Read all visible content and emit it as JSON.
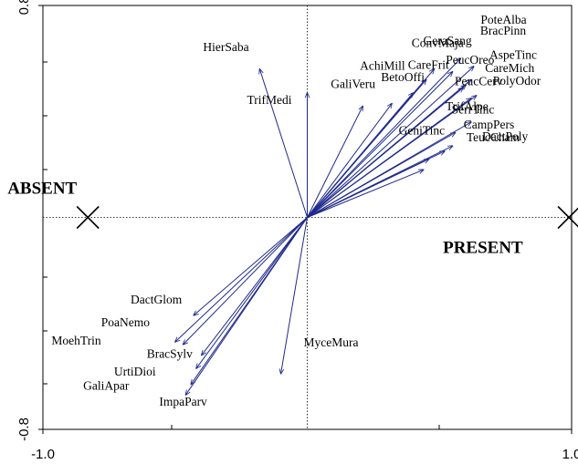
{
  "chart_data": {
    "type": "scatter",
    "title": "",
    "xlabel": "",
    "ylabel": "",
    "xlim": [
      -1.0,
      1.0
    ],
    "ylim": [
      -0.8,
      0.8
    ],
    "x_ticks": [
      {
        "value": -1.0,
        "label": "-1.0"
      },
      {
        "value": 1.0,
        "label": "1.0"
      }
    ],
    "y_ticks": [
      {
        "value": 0.8,
        "label": "0.8"
      },
      {
        "value": -0.8,
        "label": "-0.8"
      }
    ],
    "reference_lines": {
      "x": 0,
      "y": 0,
      "style": "dotted"
    },
    "arrow_color": "#1f2a8c",
    "centroids": [
      {
        "name": "ABSENT",
        "x": -0.83,
        "y": 0.0
      },
      {
        "name": "PRESENT",
        "x": 0.99,
        "y": 0.0
      }
    ],
    "species": [
      {
        "name": "HierSaba",
        "x": -0.18,
        "y": 0.56
      },
      {
        "name": "TrifMedi",
        "x": 0.0,
        "y": 0.47
      },
      {
        "name": "AchiMill",
        "x": 0.32,
        "y": 0.43
      },
      {
        "name": "GaliVeru",
        "x": 0.21,
        "y": 0.42
      },
      {
        "name": "BetoOffi",
        "x": 0.4,
        "y": 0.47
      },
      {
        "name": "CareFrit",
        "x": 0.45,
        "y": 0.52
      },
      {
        "name": "GeraSang",
        "x": 0.48,
        "y": 0.56
      },
      {
        "name": "ConvMaja",
        "x": 0.55,
        "y": 0.55
      },
      {
        "name": "PoteAlba",
        "x": 0.58,
        "y": 0.6
      },
      {
        "name": "BracPinn",
        "x": 0.63,
        "y": 0.57
      },
      {
        "name": "PeucOreo",
        "x": 0.6,
        "y": 0.5
      },
      {
        "name": "AspeTinc",
        "x": 0.62,
        "y": 0.52
      },
      {
        "name": "PeucCerv",
        "x": 0.62,
        "y": 0.45
      },
      {
        "name": "CareMich",
        "x": 0.59,
        "y": 0.49
      },
      {
        "name": "PolyOdor",
        "x": 0.64,
        "y": 0.46
      },
      {
        "name": "SerrTinc",
        "x": 0.56,
        "y": 0.32
      },
      {
        "name": "CampPers",
        "x": 0.55,
        "y": 0.27
      },
      {
        "name": "TrifAlpe",
        "x": 0.62,
        "y": 0.36
      },
      {
        "name": "DactPoly",
        "x": 0.52,
        "y": 0.25
      },
      {
        "name": "GeniTinc",
        "x": 0.46,
        "y": 0.22
      },
      {
        "name": "TeucCham",
        "x": 0.44,
        "y": 0.18
      },
      {
        "name": "DactGlom",
        "x": -0.43,
        "y": -0.37
      },
      {
        "name": "PoaNemo",
        "x": -0.5,
        "y": -0.47
      },
      {
        "name": "MoehTrin",
        "x": -0.47,
        "y": -0.48
      },
      {
        "name": "BracSylv",
        "x": -0.4,
        "y": -0.52
      },
      {
        "name": "UrtiDioi",
        "x": -0.42,
        "y": -0.57
      },
      {
        "name": "GaliApar",
        "x": -0.44,
        "y": -0.63
      },
      {
        "name": "ImpaParv",
        "x": -0.46,
        "y": -0.67
      },
      {
        "name": "MyceMura",
        "x": -0.1,
        "y": -0.59
      }
    ]
  }
}
